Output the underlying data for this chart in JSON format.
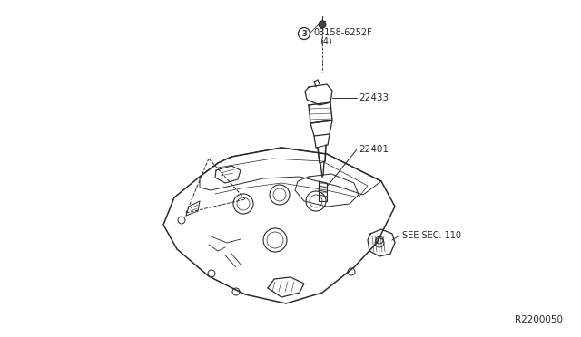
{
  "background_color": "#ffffff",
  "line_color": "#2a2a2a",
  "diagram_id": "R2200050",
  "labels": {
    "bolt": "08158-6252F",
    "bolt2": "(4)",
    "coil": "22433",
    "spark_plug": "22401",
    "see_sec": "SEE SEC. 110"
  },
  "circle_label": "3",
  "fig_width": 6.4,
  "fig_height": 3.72,
  "dpi": 100
}
